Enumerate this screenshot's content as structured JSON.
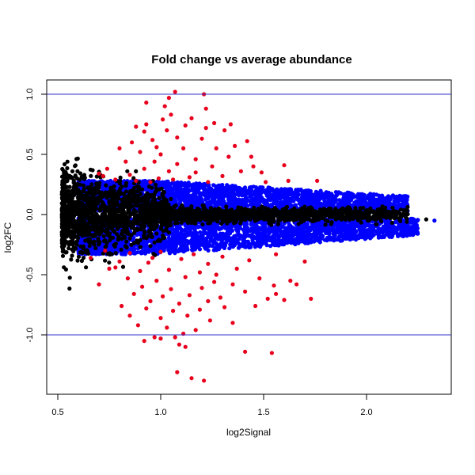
{
  "chart_data": {
    "type": "scatter",
    "title": "Fold change vs average abundance",
    "xlabel": "log2Signal",
    "ylabel": "log2FC",
    "xlim": [
      0.45,
      2.4
    ],
    "ylim": [
      -1.45,
      1.1
    ],
    "x_ticks": [
      0.5,
      1.0,
      1.5,
      2.0
    ],
    "x_tick_labels": [
      "0.5",
      "1.0",
      "1.5",
      "2.0"
    ],
    "y_ticks": [
      -1.0,
      -0.5,
      0.0,
      0.5,
      1.0
    ],
    "y_tick_labels": [
      "-1.0",
      "-0.5",
      "0.0",
      "0.5",
      "1.0"
    ],
    "grid": false,
    "legend": "none",
    "reference_lines": [
      {
        "axis": "y",
        "value": 1.0,
        "color": "#3333cc"
      },
      {
        "axis": "y",
        "value": -1.0,
        "color": "#3333cc"
      }
    ],
    "colors": {
      "red": "#e8001c",
      "blue": "#0000ff",
      "black": "#000000"
    },
    "series": [
      {
        "color": "red",
        "points": [
          [
            0.93,
            0.93
          ],
          [
            1.07,
            1.02
          ],
          [
            1.21,
            1.0
          ],
          [
            1.04,
            0.97
          ],
          [
            1.02,
            0.9
          ],
          [
            1.22,
            0.88
          ],
          [
            0.88,
            0.73
          ],
          [
            0.93,
            0.75
          ],
          [
            1.01,
            0.79
          ],
          [
            1.15,
            0.8
          ],
          [
            1.26,
            0.76
          ],
          [
            1.34,
            0.75
          ],
          [
            0.92,
            0.69
          ],
          [
            1.03,
            0.7
          ],
          [
            1.22,
            0.72
          ],
          [
            1.31,
            0.7
          ],
          [
            1.2,
            0.63
          ],
          [
            0.86,
            0.6
          ],
          [
            0.96,
            0.62
          ],
          [
            1.08,
            0.64
          ],
          [
            1.42,
            0.61
          ],
          [
            1.36,
            0.57
          ],
          [
            1.27,
            0.55
          ],
          [
            0.8,
            0.55
          ],
          [
            0.9,
            0.52
          ],
          [
            1.0,
            0.5
          ],
          [
            1.17,
            0.46
          ],
          [
            1.44,
            0.48
          ],
          [
            1.45,
            0.4
          ],
          [
            0.83,
            0.44
          ],
          [
            0.97,
            0.44
          ],
          [
            1.08,
            0.42
          ],
          [
            1.25,
            0.4
          ],
          [
            1.6,
            0.41
          ],
          [
            0.74,
            0.38
          ],
          [
            0.92,
            0.38
          ],
          [
            1.04,
            0.36
          ],
          [
            1.17,
            0.35
          ],
          [
            1.39,
            0.36
          ],
          [
            1.49,
            0.35
          ],
          [
            0.7,
            0.34
          ],
          [
            0.85,
            0.33
          ],
          [
            0.99,
            0.3
          ],
          [
            1.14,
            0.31
          ],
          [
            1.3,
            0.32
          ],
          [
            1.76,
            0.28
          ],
          [
            0.78,
            0.29
          ],
          [
            0.88,
            0.28
          ],
          [
            1.06,
            0.29
          ],
          [
            1.51,
            0.27
          ],
          [
            1.62,
            0.28
          ],
          [
            0.95,
            0.27
          ],
          [
            1.23,
            0.27
          ],
          [
            0.72,
            0.32
          ],
          [
            1.11,
            0.55
          ],
          [
            0.98,
            0.56
          ],
          [
            1.33,
            0.48
          ],
          [
            1.12,
            0.74
          ],
          [
            1.05,
            0.83
          ],
          [
            0.73,
            -0.3
          ],
          [
            0.85,
            -0.32
          ],
          [
            1.0,
            -0.31
          ],
          [
            1.16,
            -0.33
          ],
          [
            1.3,
            -0.35
          ],
          [
            1.56,
            -0.33
          ],
          [
            0.66,
            -0.36
          ],
          [
            0.8,
            -0.39
          ],
          [
            0.94,
            -0.4
          ],
          [
            1.1,
            -0.37
          ],
          [
            1.23,
            -0.41
          ],
          [
            1.43,
            -0.38
          ],
          [
            1.7,
            -0.39
          ],
          [
            0.75,
            -0.45
          ],
          [
            0.9,
            -0.47
          ],
          [
            1.04,
            -0.46
          ],
          [
            1.19,
            -0.48
          ],
          [
            1.37,
            -0.45
          ],
          [
            0.84,
            -0.53
          ],
          [
            0.98,
            -0.55
          ],
          [
            1.12,
            -0.52
          ],
          [
            1.26,
            -0.56
          ],
          [
            1.48,
            -0.53
          ],
          [
            1.63,
            -0.55
          ],
          [
            0.7,
            -0.58
          ],
          [
            0.91,
            -0.6
          ],
          [
            1.05,
            -0.62
          ],
          [
            1.2,
            -0.61
          ],
          [
            1.35,
            -0.58
          ],
          [
            1.55,
            -0.59
          ],
          [
            1.66,
            -0.58
          ],
          [
            0.87,
            -0.66
          ],
          [
            1.01,
            -0.68
          ],
          [
            1.14,
            -0.67
          ],
          [
            1.29,
            -0.69
          ],
          [
            1.56,
            -0.66
          ],
          [
            0.95,
            -0.72
          ],
          [
            1.09,
            -0.74
          ],
          [
            1.23,
            -0.72
          ],
          [
            1.52,
            -0.7
          ],
          [
            1.6,
            -0.71
          ],
          [
            1.73,
            -0.7
          ],
          [
            0.81,
            -0.76
          ],
          [
            0.93,
            -0.78
          ],
          [
            1.06,
            -0.8
          ],
          [
            1.19,
            -0.79
          ],
          [
            1.31,
            -0.77
          ],
          [
            1.46,
            -0.76
          ],
          [
            0.85,
            -0.84
          ],
          [
            1.0,
            -0.86
          ],
          [
            1.13,
            -0.84
          ],
          [
            1.24,
            -0.88
          ],
          [
            0.89,
            -0.92
          ],
          [
            1.03,
            -0.94
          ],
          [
            1.17,
            -0.96
          ],
          [
            1.11,
            -0.99
          ],
          [
            0.97,
            -1.02
          ],
          [
            1.0,
            -1.03
          ],
          [
            0.92,
            -1.05
          ],
          [
            1.07,
            -1.02
          ],
          [
            1.12,
            -1.1
          ],
          [
            1.09,
            -1.08
          ],
          [
            1.41,
            -1.14
          ],
          [
            1.54,
            -1.15
          ],
          [
            1.08,
            -1.31
          ],
          [
            1.15,
            -1.36
          ],
          [
            1.21,
            -1.38
          ],
          [
            0.78,
            -0.44
          ],
          [
            1.27,
            -0.5
          ],
          [
            1.41,
            -0.64
          ],
          [
            0.96,
            -0.36
          ],
          [
            1.35,
            -0.9
          ]
        ]
      }
    ],
    "clouds": [
      {
        "color": "black",
        "band": "wide-low-abundance",
        "x_range": [
          0.52,
          1.05
        ],
        "y_spread": 0.3,
        "count": 1400
      },
      {
        "color": "blue",
        "band": "upper",
        "x_range": [
          0.6,
          2.2
        ],
        "y_range": [
          0.03,
          0.28
        ],
        "count": 2600
      },
      {
        "color": "blue",
        "band": "lower",
        "x_range": [
          0.6,
          2.25
        ],
        "y_range": [
          -0.33,
          -0.03
        ],
        "count": 2800
      },
      {
        "color": "black",
        "band": "central-line",
        "x_range": [
          0.9,
          2.2
        ],
        "y_spread": 0.05,
        "count": 1600
      }
    ],
    "outliers": [
      {
        "color": "black",
        "x": 2.29,
        "y": -0.04
      },
      {
        "color": "blue",
        "x": 2.33,
        "y": -0.05
      }
    ]
  }
}
